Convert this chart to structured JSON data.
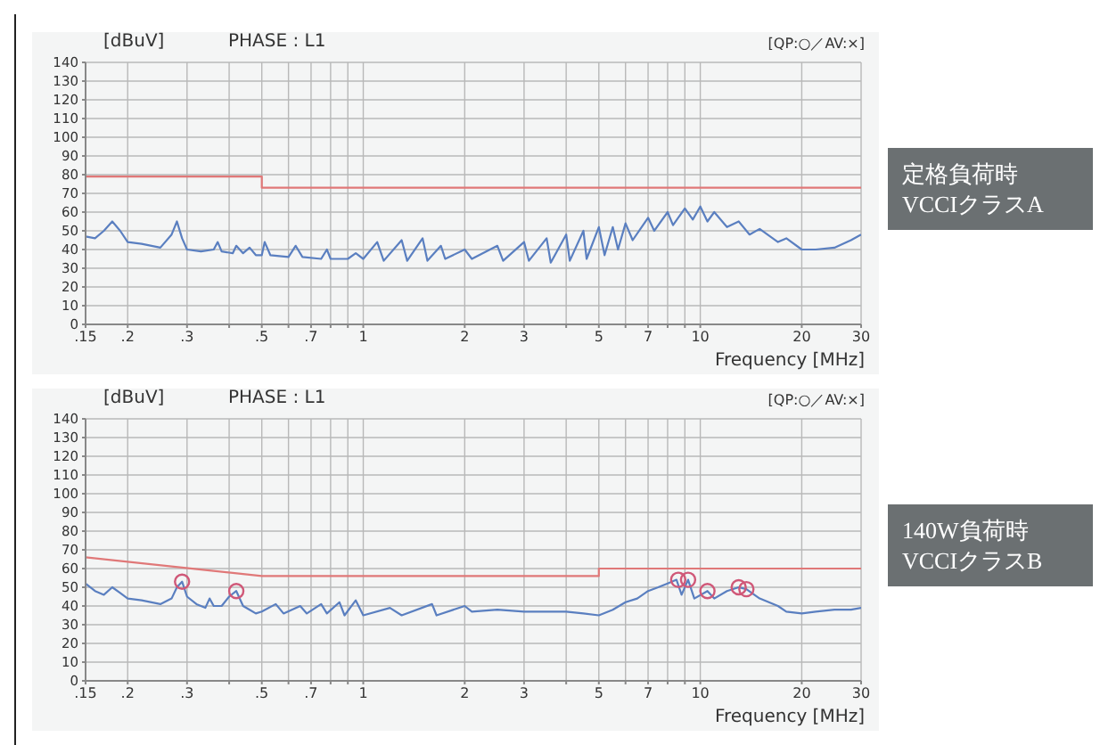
{
  "chart_data": [
    {
      "type": "line",
      "title": "PHASE : L1",
      "ylabel": "[dBuV]",
      "xlabel": "Frequency [MHz]",
      "log": "x",
      "grid": true,
      "marker": "none",
      "annotations": [
        "[QP:○／AV:×]",
        "定格負荷時\nVCCIクラスA"
      ],
      "xlim": [
        0.15,
        30
      ],
      "xticks": [
        {
          "value": 0.15,
          "label": ".15"
        },
        {
          "value": 0.2,
          "label": ".2"
        },
        {
          "value": 0.3,
          "label": ".3"
        },
        {
          "value": 0.4,
          "label": null
        },
        {
          "value": 0.5,
          "label": ".5"
        },
        {
          "value": 0.6,
          "label": null
        },
        {
          "value": 0.7,
          "label": ".7"
        },
        {
          "value": 0.8,
          "label": null
        },
        {
          "value": 0.9,
          "label": null
        },
        1,
        2,
        3,
        {
          "value": 4,
          "label": null
        },
        5,
        {
          "value": 6,
          "label": null
        },
        7,
        {
          "value": 8,
          "label": null
        },
        {
          "value": 9,
          "label": null
        },
        10,
        20,
        30
      ],
      "ylim": [
        0,
        140
      ],
      "yticks": [
        0,
        10,
        20,
        30,
        40,
        50,
        60,
        70,
        80,
        90,
        100,
        110,
        120,
        130,
        140
      ],
      "series": [
        {
          "color": "#5a7fc0",
          "x": [
            0.15,
            0.16,
            0.17,
            0.18,
            0.19,
            0.2,
            0.22,
            0.25,
            0.27,
            0.28,
            0.29,
            0.3,
            0.33,
            0.36,
            0.37,
            0.38,
            0.41,
            0.42,
            0.44,
            0.46,
            0.48,
            0.5,
            0.51,
            0.53,
            0.6,
            0.63,
            0.66,
            0.75,
            0.78,
            0.8,
            0.9,
            0.95,
            1,
            1.1,
            1.15,
            1.3,
            1.35,
            1.5,
            1.55,
            1.7,
            1.75,
            2,
            2.1,
            2.5,
            2.6,
            3,
            3.1,
            3.5,
            3.6,
            4,
            4.1,
            4.5,
            4.6,
            5,
            5.2,
            5.5,
            5.7,
            6,
            6.3,
            7,
            7.3,
            8,
            8.3,
            9,
            9.5,
            10,
            10.5,
            11,
            12,
            13,
            14,
            15,
            17,
            18,
            20,
            22,
            25,
            28,
            30
          ],
          "values": [
            47,
            46,
            50,
            55,
            50,
            44,
            43,
            41,
            48,
            55,
            46,
            40,
            39,
            40,
            44,
            39,
            38,
            42,
            38,
            41,
            37,
            37,
            44,
            37,
            36,
            42,
            36,
            35,
            40,
            35,
            35,
            38,
            35,
            44,
            34,
            45,
            34,
            46,
            34,
            42,
            35,
            40,
            35,
            42,
            34,
            44,
            34,
            46,
            33,
            48,
            34,
            50,
            35,
            52,
            37,
            52,
            40,
            54,
            45,
            57,
            50,
            60,
            53,
            62,
            56,
            63,
            55,
            60,
            52,
            55,
            48,
            51,
            44,
            46,
            40,
            40,
            41,
            45,
            48
          ]
        },
        {
          "color": "#e07878",
          "x": [
            0.15,
            0.5,
            0.5,
            30
          ],
          "values": [
            79,
            79,
            73,
            73
          ]
        }
      ]
    },
    {
      "type": "line",
      "title": "PHASE : L1",
      "ylabel": "[dBuV]",
      "xlabel": "Frequency [MHz]",
      "log": "x",
      "grid": true,
      "marker": "none",
      "annotations": [
        "[QP:○／AV:×]",
        "140W負荷時\nVCCIクラスB"
      ],
      "xlim": [
        0.15,
        30
      ],
      "xticks": [
        {
          "value": 0.15,
          "label": ".15"
        },
        {
          "value": 0.2,
          "label": ".2"
        },
        {
          "value": 0.3,
          "label": ".3"
        },
        {
          "value": 0.4,
          "label": null
        },
        {
          "value": 0.5,
          "label": ".5"
        },
        {
          "value": 0.6,
          "label": null
        },
        {
          "value": 0.7,
          "label": ".7"
        },
        {
          "value": 0.8,
          "label": null
        },
        {
          "value": 0.9,
          "label": null
        },
        1,
        2,
        3,
        {
          "value": 4,
          "label": null
        },
        5,
        {
          "value": 6,
          "label": null
        },
        7,
        {
          "value": 8,
          "label": null
        },
        {
          "value": 9,
          "label": null
        },
        10,
        20,
        30
      ],
      "ylim": [
        0,
        140
      ],
      "yticks": [
        0,
        10,
        20,
        30,
        40,
        50,
        60,
        70,
        80,
        90,
        100,
        110,
        120,
        130,
        140
      ],
      "series": [
        {
          "color": "#5a7fc0",
          "x": [
            0.15,
            0.16,
            0.17,
            0.18,
            0.19,
            0.2,
            0.22,
            0.25,
            0.27,
            0.28,
            0.29,
            0.3,
            0.32,
            0.34,
            0.35,
            0.36,
            0.38,
            0.4,
            0.42,
            0.44,
            0.46,
            0.48,
            0.5,
            0.55,
            0.58,
            0.65,
            0.68,
            0.75,
            0.78,
            0.85,
            0.88,
            0.95,
            1,
            1.2,
            1.3,
            1.6,
            1.65,
            2,
            2.1,
            2.5,
            3,
            4,
            4.5,
            5,
            5.5,
            6,
            6.5,
            7,
            7.5,
            8,
            8.5,
            8.8,
            9.2,
            9.6,
            10.5,
            11,
            12,
            13,
            13.7,
            15,
            17,
            18,
            20,
            22,
            25,
            28,
            30
          ],
          "values": [
            52,
            48,
            46,
            50,
            47,
            44,
            43,
            41,
            44,
            50,
            53,
            45,
            41,
            39,
            44,
            40,
            40,
            45,
            48,
            40,
            38,
            36,
            37,
            41,
            36,
            40,
            36,
            41,
            36,
            42,
            35,
            43,
            35,
            39,
            35,
            41,
            35,
            40,
            37,
            38,
            37,
            37,
            36,
            35,
            38,
            42,
            44,
            48,
            50,
            52,
            54,
            46,
            54,
            44,
            48,
            44,
            48,
            50,
            49,
            44,
            40,
            37,
            36,
            37,
            38,
            38,
            39
          ]
        },
        {
          "color": "#e07878",
          "x": [
            0.15,
            0.5,
            5,
            5,
            30
          ],
          "values": [
            66,
            56,
            56,
            60,
            60
          ]
        },
        {
          "type": "scatter",
          "marker": "circle",
          "color": "#d05878",
          "x": [
            0.29,
            0.42,
            8.6,
            9.2,
            10.5,
            13,
            13.7
          ],
          "values": [
            53,
            48,
            54,
            54,
            48,
            50,
            49
          ]
        }
      ]
    }
  ]
}
